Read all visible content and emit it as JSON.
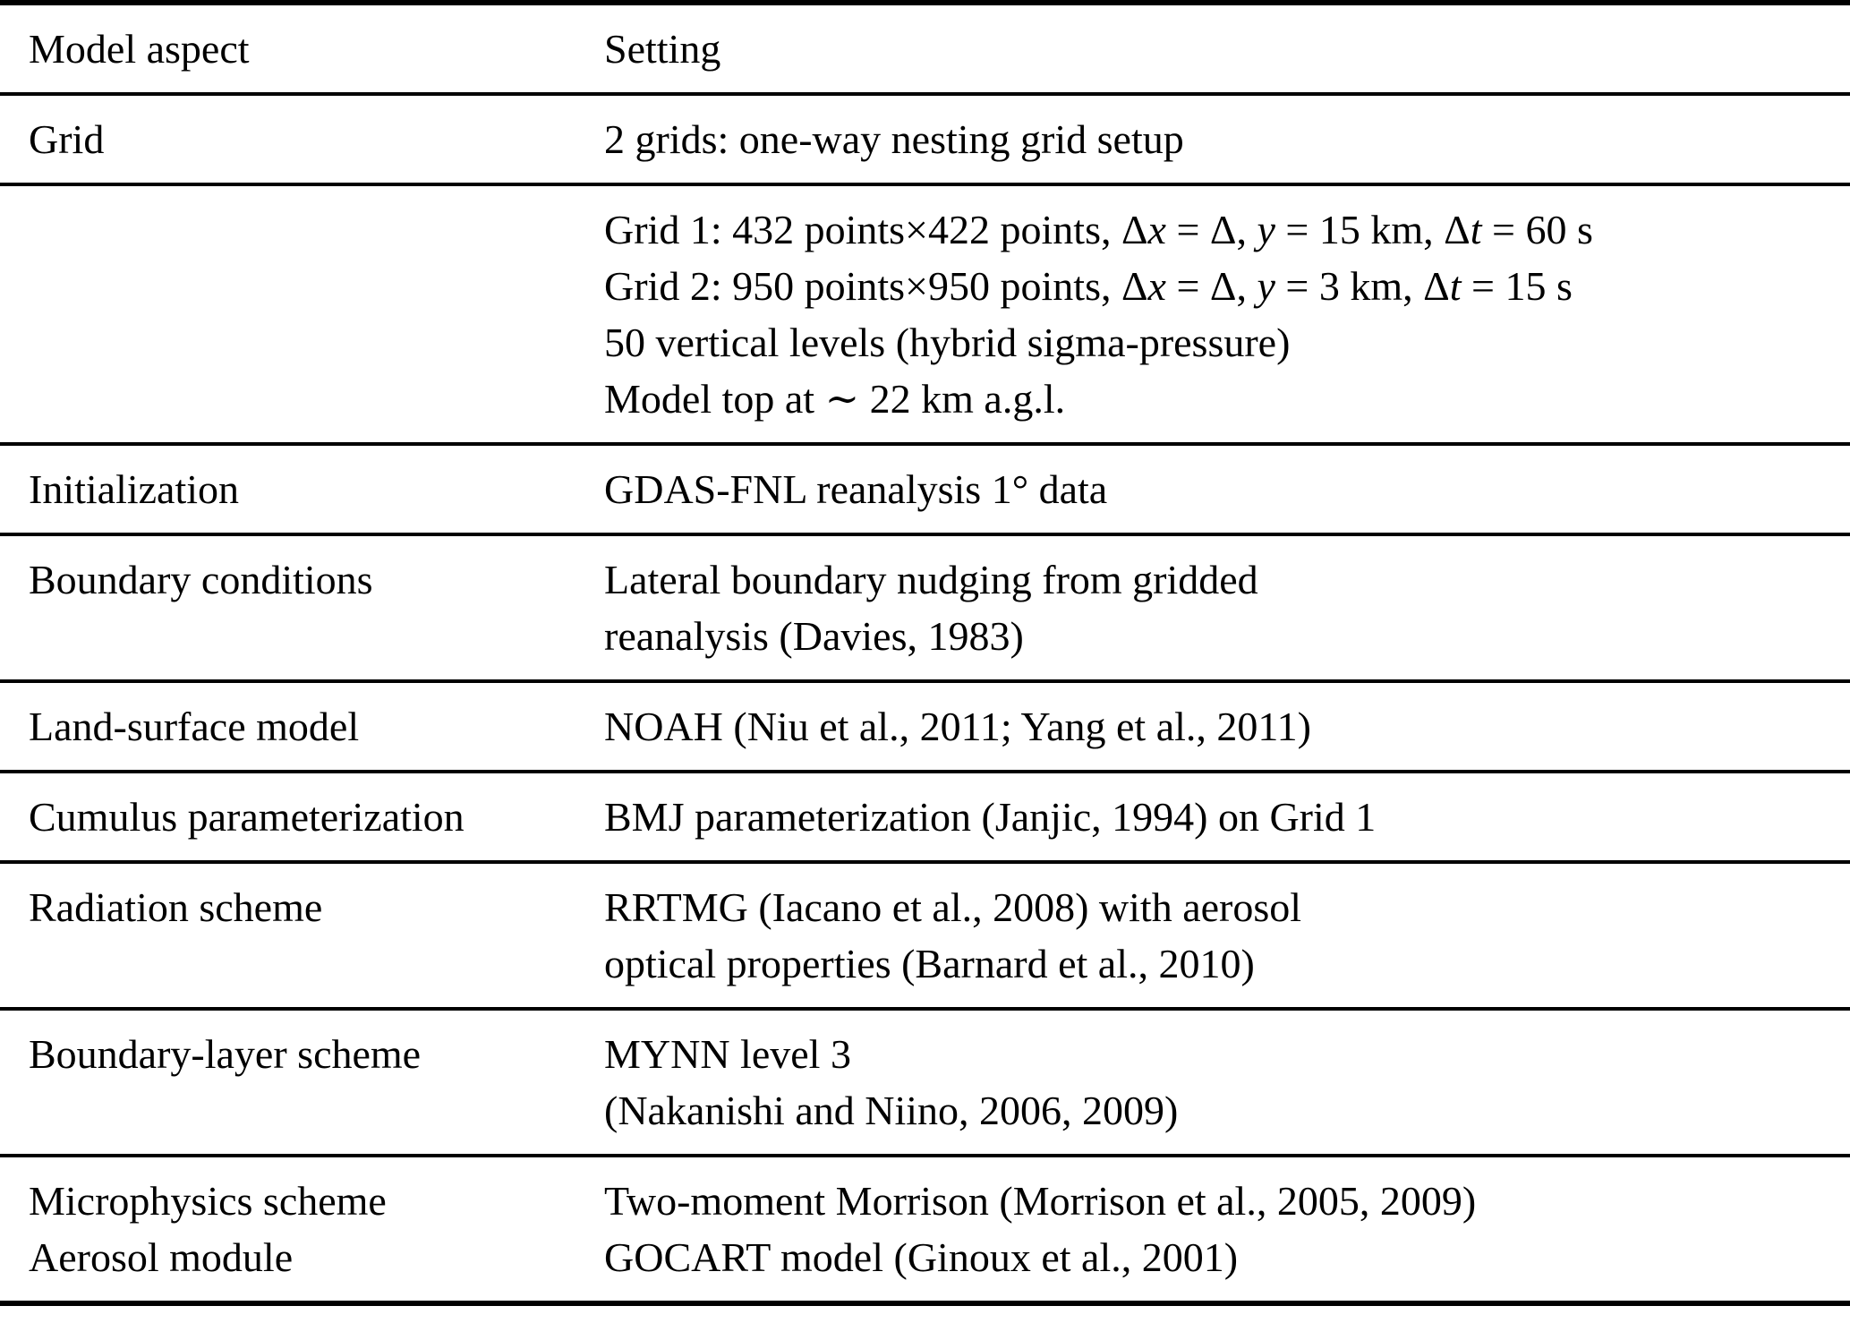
{
  "table": {
    "columns": [
      "Model aspect",
      "Setting"
    ],
    "rows": [
      {
        "aspect": [
          [
            {
              "t": "Grid"
            }
          ]
        ],
        "setting": [
          [
            {
              "t": "2 grids: one-way nesting grid setup"
            }
          ]
        ]
      },
      {
        "aspect": [],
        "setting": [
          [
            {
              "t": "Grid 1: 432 points×422 points, Δ"
            },
            {
              "t": "x",
              "i": true
            },
            {
              "t": " = Δ, "
            },
            {
              "t": "y",
              "i": true
            },
            {
              "t": " = 15 km, Δ"
            },
            {
              "t": "t",
              "i": true
            },
            {
              "t": " = 60 s"
            }
          ],
          [
            {
              "t": "Grid 2: 950 points×950 points, Δ"
            },
            {
              "t": "x",
              "i": true
            },
            {
              "t": " = Δ, "
            },
            {
              "t": "y",
              "i": true
            },
            {
              "t": " = 3 km, Δ"
            },
            {
              "t": "t",
              "i": true
            },
            {
              "t": " = 15 s"
            }
          ],
          [
            {
              "t": "50 vertical levels (hybrid sigma-pressure)"
            }
          ],
          [
            {
              "t": "Model top at ∼ 22 km a.g.l."
            }
          ]
        ]
      },
      {
        "aspect": [
          [
            {
              "t": "Initialization"
            }
          ]
        ],
        "setting": [
          [
            {
              "t": "GDAS-FNL reanalysis 1° data"
            }
          ]
        ]
      },
      {
        "aspect": [
          [
            {
              "t": "Boundary conditions"
            }
          ]
        ],
        "setting": [
          [
            {
              "t": "Lateral boundary nudging from gridded"
            }
          ],
          [
            {
              "t": "reanalysis (Davies, 1983)"
            }
          ]
        ]
      },
      {
        "aspect": [
          [
            {
              "t": "Land-surface model"
            }
          ]
        ],
        "setting": [
          [
            {
              "t": "NOAH (Niu et al., 2011; Yang et al., 2011)"
            }
          ]
        ]
      },
      {
        "aspect": [
          [
            {
              "t": "Cumulus parameterization"
            }
          ]
        ],
        "setting": [
          [
            {
              "t": "BMJ parameterization (Janjic, 1994) on Grid 1"
            }
          ]
        ]
      },
      {
        "aspect": [
          [
            {
              "t": "Radiation scheme"
            }
          ]
        ],
        "setting": [
          [
            {
              "t": "RRTMG (Iacano et al., 2008) with aerosol"
            }
          ],
          [
            {
              "t": "optical properties (Barnard et al., 2010)"
            }
          ]
        ]
      },
      {
        "aspect": [
          [
            {
              "t": "Boundary-layer scheme"
            }
          ]
        ],
        "setting": [
          [
            {
              "t": "MYNN level 3"
            }
          ],
          [
            {
              "t": "(Nakanishi and Niino, 2006, 2009)"
            }
          ]
        ]
      },
      {
        "aspect": [
          [
            {
              "t": "Microphysics scheme"
            }
          ],
          [
            {
              "t": "Aerosol module"
            }
          ]
        ],
        "setting": [
          [
            {
              "t": "Two-moment Morrison (Morrison et al., 2005, 2009)"
            }
          ],
          [
            {
              "t": "GOCART model (Ginoux et al., 2001)"
            }
          ]
        ]
      }
    ]
  }
}
